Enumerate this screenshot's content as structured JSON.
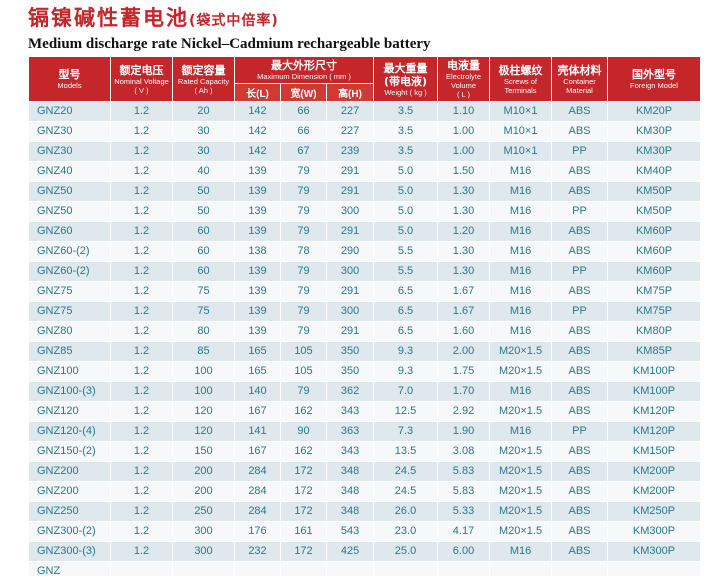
{
  "page": {
    "title_cn": "镉镍碱性蓄电池",
    "title_cn_suffix": "(袋式中倍率)",
    "title_en": "Medium discharge rate Nickel–Cadmium rechargeable battery"
  },
  "table": {
    "headers": {
      "models": {
        "cn": "型号",
        "en": "Models"
      },
      "voltage": {
        "cn": "额定电压",
        "en": "Nominal Voltage",
        "unit": "( V )"
      },
      "capacity": {
        "cn": "额定容量",
        "en": "Rated Capacity",
        "unit": "( Ah )"
      },
      "dimension": {
        "cn": "最大外形尺寸",
        "en": "Maximum Dimension ( mm )",
        "sub": [
          "长(L)",
          "宽(W)",
          "高(H)"
        ]
      },
      "weight": {
        "cn": "最大重量",
        "cn2": "(带电液)",
        "en": "Weight ( kg )"
      },
      "electrolyte": {
        "cn": "电液量",
        "en1": "Electrolyte",
        "en2": "Volume",
        "unit": "( L )"
      },
      "screws": {
        "cn": "极柱螺纹",
        "en1": "Screws of",
        "en2": "Terminals"
      },
      "container": {
        "cn": "壳体材料",
        "en1": "Container",
        "en2": "Material"
      },
      "foreign": {
        "cn": "国外型号",
        "en": "Foreign Model"
      }
    },
    "rows": [
      [
        "GNZ20",
        "1.2",
        "20",
        "142",
        "66",
        "227",
        "3.5",
        "1.10",
        "M10×1",
        "ABS",
        "KM20P"
      ],
      [
        "GNZ30",
        "1.2",
        "30",
        "142",
        "66",
        "227",
        "3.5",
        "1.00",
        "M10×1",
        "ABS",
        "KM30P"
      ],
      [
        "GNZ30",
        "1.2",
        "30",
        "142",
        "67",
        "239",
        "3.5",
        "1.00",
        "M10×1",
        "PP",
        "KM30P"
      ],
      [
        "GNZ40",
        "1.2",
        "40",
        "139",
        "79",
        "291",
        "5.0",
        "1.50",
        "M16",
        "ABS",
        "KM40P"
      ],
      [
        "GNZ50",
        "1.2",
        "50",
        "139",
        "79",
        "291",
        "5.0",
        "1.30",
        "M16",
        "ABS",
        "KM50P"
      ],
      [
        "GNZ50",
        "1.2",
        "50",
        "139",
        "79",
        "300",
        "5.0",
        "1.30",
        "M16",
        "PP",
        "KM50P"
      ],
      [
        "GNZ60",
        "1.2",
        "60",
        "139",
        "79",
        "291",
        "5.0",
        "1.20",
        "M16",
        "ABS",
        "KM60P"
      ],
      [
        "GNZ60-(2)",
        "1.2",
        "60",
        "138",
        "78",
        "290",
        "5.5",
        "1.30",
        "M16",
        "ABS",
        "KM60P"
      ],
      [
        "GNZ60-(2)",
        "1.2",
        "60",
        "139",
        "79",
        "300",
        "5.5",
        "1.30",
        "M16",
        "PP",
        "KM60P"
      ],
      [
        "GNZ75",
        "1.2",
        "75",
        "139",
        "79",
        "291",
        "6.5",
        "1.67",
        "M16",
        "ABS",
        "KM75P"
      ],
      [
        "GNZ75",
        "1.2",
        "75",
        "139",
        "79",
        "300",
        "6.5",
        "1.67",
        "M16",
        "PP",
        "KM75P"
      ],
      [
        "GNZ80",
        "1.2",
        "80",
        "139",
        "79",
        "291",
        "6.5",
        "1.60",
        "M16",
        "ABS",
        "KM80P"
      ],
      [
        "GNZ85",
        "1.2",
        "85",
        "165",
        "105",
        "350",
        "9.3",
        "2.00",
        "M20×1.5",
        "ABS",
        "KM85P"
      ],
      [
        "GNZ100",
        "1.2",
        "100",
        "165",
        "105",
        "350",
        "9.3",
        "1.75",
        "M20×1.5",
        "ABS",
        "KM100P"
      ],
      [
        "GNZ100-(3)",
        "1.2",
        "100",
        "140",
        "79",
        "362",
        "7.0",
        "1.70",
        "M16",
        "ABS",
        "KM100P"
      ],
      [
        "GNZ120",
        "1.2",
        "120",
        "167",
        "162",
        "343",
        "12.5",
        "2.92",
        "M20×1.5",
        "ABS",
        "KM120P"
      ],
      [
        "GNZ120-(4)",
        "1.2",
        "120",
        "141",
        "90",
        "363",
        "7.3",
        "1.90",
        "M16",
        "PP",
        "KM120P"
      ],
      [
        "GNZ150-(2)",
        "1.2",
        "150",
        "167",
        "162",
        "343",
        "13.5",
        "3.08",
        "M20×1.5",
        "ABS",
        "KM150P"
      ],
      [
        "GNZ200",
        "1.2",
        "200",
        "284",
        "172",
        "348",
        "24.5",
        "5.83",
        "M20×1.5",
        "ABS",
        "KM200P"
      ],
      [
        "GNZ200",
        "1.2",
        "200",
        "284",
        "172",
        "348",
        "24.5",
        "5.83",
        "M20×1.5",
        "ABS",
        "KM200P"
      ],
      [
        "GNZ250",
        "1.2",
        "250",
        "284",
        "172",
        "348",
        "26.0",
        "5.33",
        "M20×1.5",
        "ABS",
        "KM250P"
      ],
      [
        "GNZ300-(2)",
        "1.2",
        "300",
        "176",
        "161",
        "543",
        "23.0",
        "4.17",
        "M20×1.5",
        "ABS",
        "KM300P"
      ],
      [
        "GNZ300-(3)",
        "1.2",
        "300",
        "232",
        "172",
        "425",
        "25.0",
        "6.00",
        "M16",
        "ABS",
        "KM300P"
      ]
    ],
    "partial_row": [
      "GNZ",
      "",
      "",
      "",
      "",
      "",
      "",
      "",
      "",
      "",
      ""
    ]
  }
}
